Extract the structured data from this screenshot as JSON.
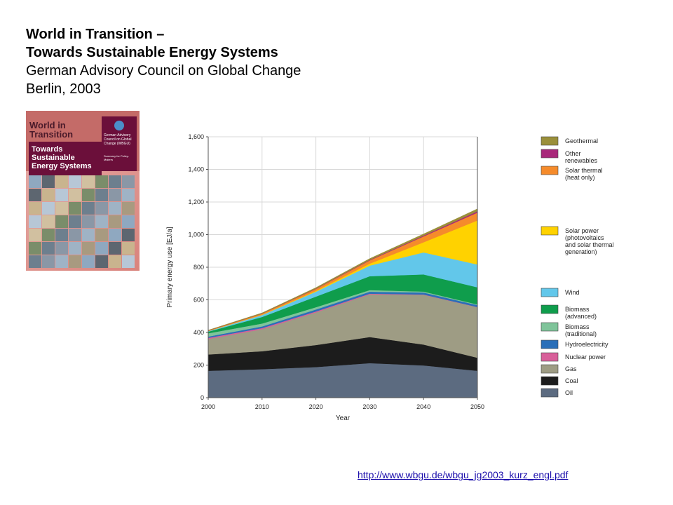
{
  "header": {
    "line1": "World in Transition –",
    "line2": "Towards Sustainable Energy Systems",
    "line3": "German Advisory Council on Global Change",
    "line4": "Berlin, 2003"
  },
  "cover": {
    "title": "World in Transition",
    "subtitle": "Towards Sustainable Energy Systems",
    "publisher": "German Advisory Council on Global Change (WBGU)",
    "summary": "Summary for Policy-Makers"
  },
  "link": {
    "url": "http://www.wbgu.de/wbgu_jg2003_kurz_engl.pdf"
  },
  "chart_data": {
    "type": "area",
    "stacked": true,
    "xlabel": "Year",
    "ylabel": "Primary energy use [EJ/a]",
    "x": [
      2000,
      2010,
      2020,
      2030,
      2040,
      2050
    ],
    "ylim": [
      0,
      1600
    ],
    "yticks": [
      0,
      200,
      400,
      600,
      800,
      1000,
      1200,
      1400,
      1600
    ],
    "yticklabels": [
      "0",
      "200",
      "400",
      "600",
      "800",
      "1,000",
      "1,200",
      "1,400",
      "1,600"
    ],
    "xticklabels": [
      "2000",
      "2010",
      "2020",
      "2030",
      "2040",
      "2050"
    ],
    "grid": true,
    "legend_position": "right",
    "series": [
      {
        "name": "Oil",
        "color": "#5c6b80",
        "values": [
          165,
          175,
          188,
          212,
          198,
          165
        ]
      },
      {
        "name": "Coal",
        "color": "#1c1c1c",
        "values": [
          100,
          110,
          135,
          160,
          128,
          80
        ]
      },
      {
        "name": "Gas",
        "color": "#9e9c84",
        "values": [
          95,
          135,
          200,
          262,
          305,
          310
        ]
      },
      {
        "name": "Nuclear power",
        "color": "#d8609a",
        "values": [
          7,
          7,
          6,
          4,
          2,
          1
        ]
      },
      {
        "name": "Hydroelectricity",
        "color": "#2a6fb8",
        "values": [
          8,
          10,
          12,
          12,
          12,
          12
        ]
      },
      {
        "name": "Biomass (traditional)",
        "color": "#7fc49a",
        "values": [
          20,
          18,
          14,
          10,
          6,
          4
        ]
      },
      {
        "name": "Biomass (advanced)",
        "color": "#0f9d4c",
        "values": [
          10,
          40,
          65,
          85,
          105,
          105
        ]
      },
      {
        "name": "Wind",
        "color": "#62c7ea",
        "values": [
          3,
          12,
          30,
          65,
          135,
          140
        ]
      },
      {
        "name": "Solar power (photovoltaics and solar thermal generation)",
        "color": "#ffd200",
        "values": [
          1,
          2,
          5,
          12,
          62,
          270
        ]
      },
      {
        "name": "Solar thermal (heat only)",
        "color": "#f58b2b",
        "values": [
          2,
          6,
          12,
          20,
          36,
          48
        ]
      },
      {
        "name": "Other renewables",
        "color": "#a8287a",
        "values": [
          1,
          1,
          2,
          3,
          5,
          8
        ]
      },
      {
        "name": "Geothermal",
        "color": "#9a8f3a",
        "values": [
          2,
          4,
          6,
          8,
          10,
          15
        ]
      }
    ],
    "legend": [
      {
        "label": "Geothermal",
        "color": "#9a8f3a"
      },
      {
        "label": "Other renewables",
        "color": "#a8287a"
      },
      {
        "label": "Solar thermal (heat only)",
        "color": "#f58b2b"
      },
      {
        "label": "Solar power (photovoltaics and solar thermal generation)",
        "color": "#ffd200"
      },
      {
        "label": "Wind",
        "color": "#62c7ea"
      },
      {
        "label": "Biomass (advanced)",
        "color": "#0f9d4c"
      },
      {
        "label": "Biomass (traditional)",
        "color": "#7fc49a"
      },
      {
        "label": "Hydroelectricity",
        "color": "#2a6fb8"
      },
      {
        "label": "Nuclear power",
        "color": "#d8609a"
      },
      {
        "label": "Gas",
        "color": "#9e9c84"
      },
      {
        "label": "Coal",
        "color": "#1c1c1c"
      },
      {
        "label": "Oil",
        "color": "#5c6b80"
      }
    ]
  }
}
